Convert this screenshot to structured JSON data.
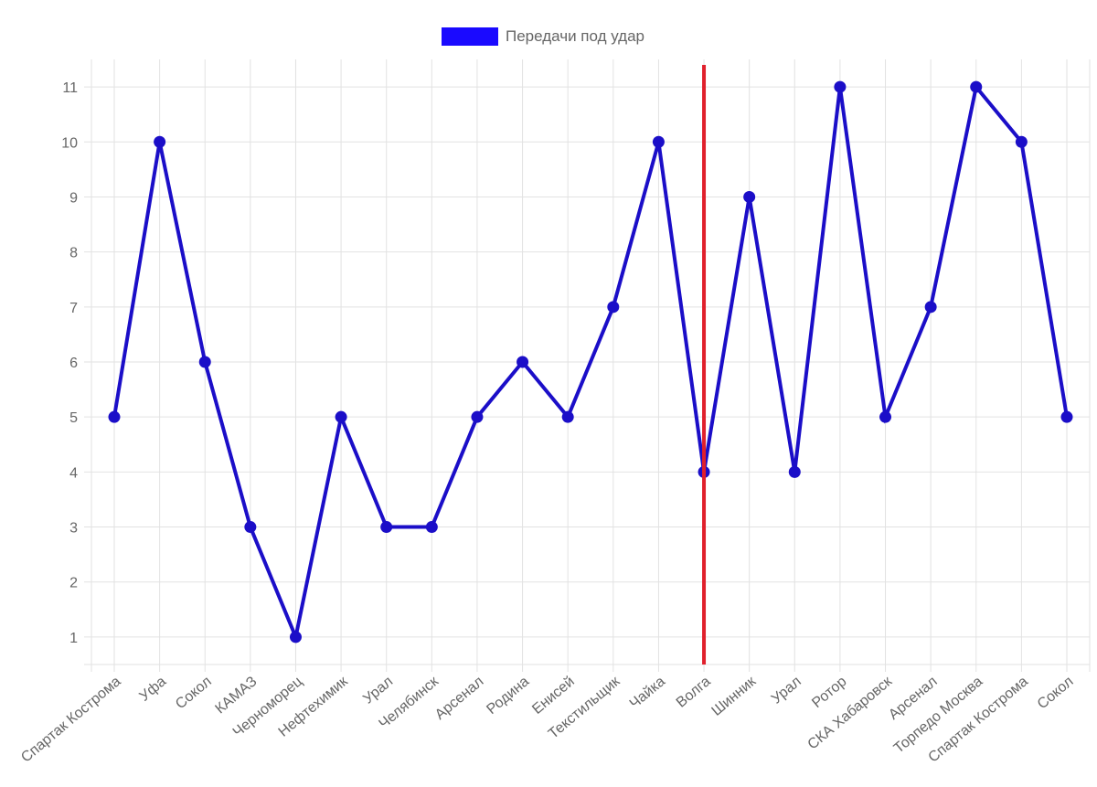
{
  "chart_data": {
    "type": "line",
    "categories": [
      "Спартак Кострома",
      "Уфа",
      "Сокол",
      "КАМАЗ",
      "Черноморец",
      "Нефтехимик",
      "Урал",
      "Челябинск",
      "Арсенал",
      "Родина",
      "Енисей",
      "Текстильщик",
      "Чайка",
      "Волга",
      "Шинник",
      "Урал",
      "Ротор",
      "СКА Хабаровск",
      "Арсенал",
      "Торпедо Москва",
      "Спартак Кострома",
      "Сокол"
    ],
    "series": [
      {
        "name": "Передачи под удар",
        "values": [
          5,
          10,
          6,
          3,
          1,
          5,
          3,
          3,
          5,
          6,
          5,
          7,
          10,
          4,
          9,
          4,
          11,
          5,
          7,
          11,
          10,
          5
        ]
      }
    ],
    "y_ticks": [
      1,
      2,
      3,
      4,
      5,
      6,
      7,
      8,
      9,
      10,
      11
    ],
    "ylim": [
      0.5,
      11.5
    ],
    "grid": true,
    "legend_position": "top",
    "marker_category_index": 13,
    "colors": {
      "series": "#1b0ec8",
      "legend": "#1a0aff",
      "marker": "#e0202c",
      "grid": "#e2e2e2",
      "text": "#666666"
    }
  }
}
